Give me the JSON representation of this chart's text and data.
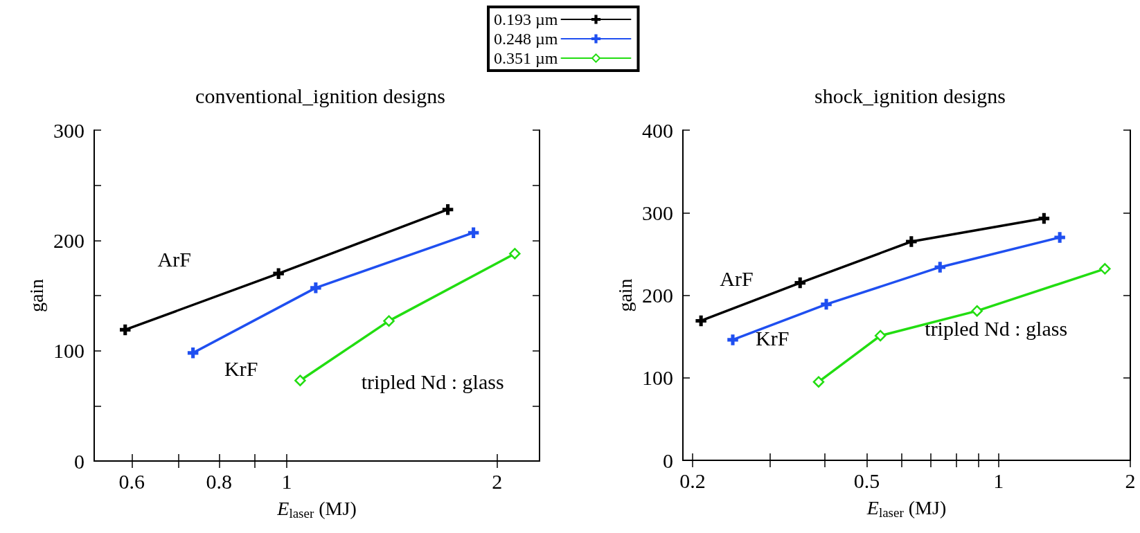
{
  "chart_data": [
    {
      "type": "line",
      "title": "conventional_ignition designs",
      "xlabel": "E$_{laser}$ (MJ)",
      "ylabel": "gain",
      "log": "x",
      "grid": false,
      "legend": "top",
      "line_style": "solid",
      "xlim": [
        0.53,
        2.3
      ],
      "xticks": [
        0.6,
        {
          "value": 0.7,
          "label": null
        },
        0.8,
        {
          "value": 0.9,
          "label": null
        },
        1,
        2
      ],
      "ylim": [
        0,
        300
      ],
      "yticks": [
        0,
        {
          "value": 50,
          "label": null
        },
        100,
        {
          "value": 150,
          "label": null
        },
        200,
        {
          "value": 250,
          "label": null
        },
        300
      ],
      "series": [
        {
          "name": "0.193 µm",
          "color": "#000000",
          "marker": "cross",
          "x": [
            0.587,
            0.973,
            1.7
          ],
          "values": [
            119,
            170,
            228
          ]
        },
        {
          "name": "0.248 µm",
          "color": "#1f4ff0",
          "marker": "cross",
          "x": [
            0.734,
            1.1,
            1.85
          ],
          "values": [
            98,
            157,
            207
          ]
        },
        {
          "name": "0.351 µm",
          "color": "#22dd11",
          "marker": "diamond",
          "x": [
            1.045,
            1.4,
            2.12
          ],
          "values": [
            73,
            127,
            188
          ]
        }
      ],
      "annotations": [
        "ArF",
        "KrF",
        "tripled Nd : glass"
      ]
    },
    {
      "type": "line",
      "title": "shock_ignition designs",
      "xlabel": "E$_{laser}$ (MJ)",
      "ylabel": "gain",
      "log": "x",
      "grid": false,
      "line_style": "solid",
      "xlim": [
        0.19,
        2
      ],
      "xticks": [
        0.2,
        {
          "value": 0.3,
          "label": null
        },
        {
          "value": 0.4,
          "label": null
        },
        0.5,
        {
          "value": 0.6,
          "label": null
        },
        {
          "value": 0.7,
          "label": null
        },
        {
          "value": 0.8,
          "label": null
        },
        {
          "value": 0.9,
          "label": null
        },
        1,
        2
      ],
      "ylim": [
        0,
        400
      ],
      "yticks": [
        0,
        100,
        200,
        300,
        400
      ],
      "series": [
        {
          "color": "#000000",
          "marker": "cross",
          "x": [
            0.209,
            0.352,
            0.632,
            1.27
          ],
          "values": [
            169,
            215,
            265,
            293
          ]
        },
        {
          "color": "#1f4ff0",
          "marker": "cross",
          "x": [
            0.247,
            0.404,
            0.735,
            1.38
          ],
          "values": [
            146,
            189,
            234,
            270
          ]
        },
        {
          "color": "#22dd11",
          "marker": "diamond",
          "x": [
            0.388,
            0.537,
            0.893,
            1.75
          ],
          "values": [
            95,
            151,
            181,
            232
          ]
        }
      ],
      "annotations": [
        "ArF",
        "KrF",
        "tripled Nd : glass"
      ]
    }
  ]
}
